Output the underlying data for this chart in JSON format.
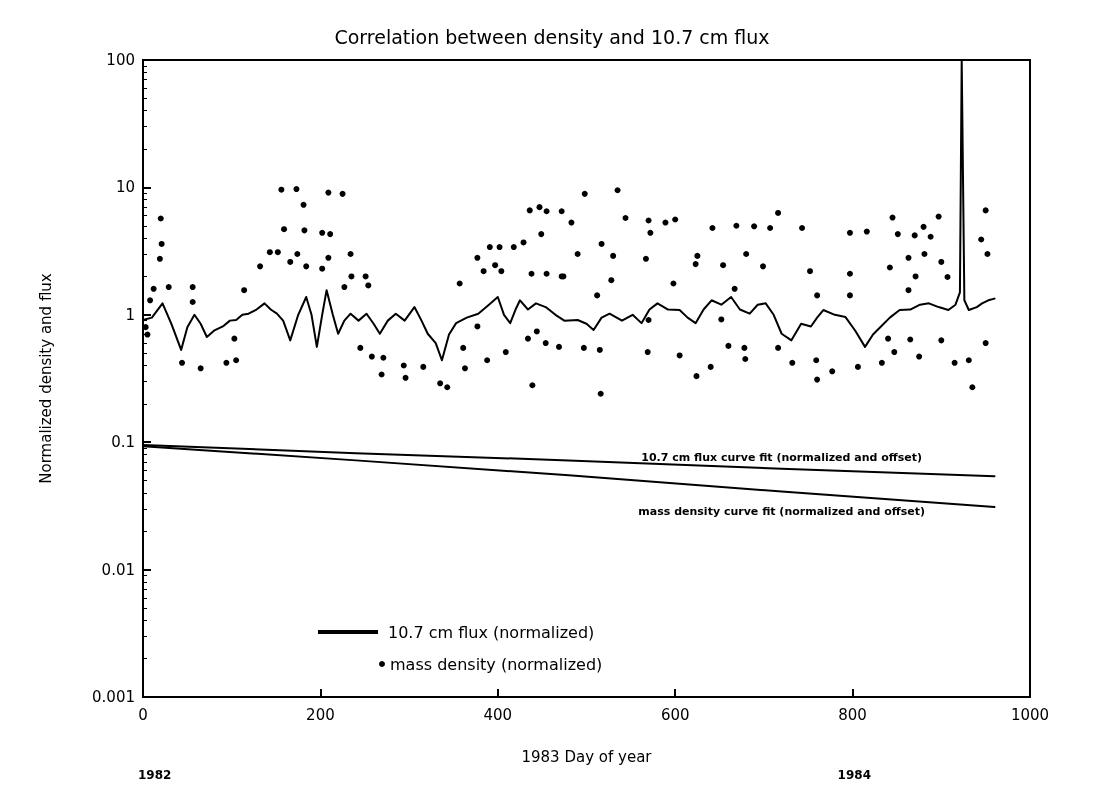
{
  "chart_data": {
    "type": "line",
    "title": "Correlation between density and 10.7 cm flux",
    "xlabel": "1983 Day of year",
    "ylabel": "Normalized density and flux",
    "annotations": [
      "1982",
      "1984"
    ],
    "log": "y",
    "grid": false,
    "legend": "bottom left",
    "xlim": [
      0,
      1000
    ],
    "xticks": [
      0,
      200,
      400,
      600,
      800,
      1000
    ],
    "ylim": [
      0.001,
      100
    ],
    "yticks": [
      0.001,
      0.01,
      0.1,
      1,
      10,
      100
    ],
    "series": [
      {
        "name": "10.7 cm flux (normalized)",
        "color": "#000000",
        "line_style": "solid",
        "marker": "none",
        "x": [
          0,
          10,
          22,
          32,
          43,
          50,
          58,
          65,
          72,
          80,
          90,
          98,
          105,
          112,
          119,
          128,
          137,
          144,
          151,
          158,
          166,
          175,
          184,
          190,
          196,
          202,
          207,
          214,
          220,
          227,
          234,
          243,
          252,
          260,
          267,
          276,
          285,
          295,
          306,
          314,
          321,
          330,
          337,
          345,
          353,
          365,
          378,
          390,
          400,
          407,
          414,
          420,
          425,
          434,
          443,
          454,
          465,
          475,
          490,
          500,
          508,
          517,
          526,
          540,
          552,
          562,
          571,
          580,
          592,
          605,
          614,
          623,
          632,
          641,
          652,
          663,
          673,
          684,
          693,
          702,
          711,
          720,
          731,
          742,
          753,
          760,
          767,
          780,
          792,
          803,
          814,
          823,
          832,
          842,
          853,
          865,
          876,
          886,
          897,
          908,
          916,
          921,
          923,
          926,
          931,
          940,
          946,
          953,
          960
        ],
        "values": [
          0.91,
          0.95,
          1.23,
          0.85,
          0.53,
          0.8,
          1.0,
          0.85,
          0.67,
          0.75,
          0.81,
          0.9,
          0.91,
          1.0,
          1.02,
          1.1,
          1.23,
          1.1,
          1.02,
          0.9,
          0.63,
          1.0,
          1.38,
          1.0,
          0.56,
          1.0,
          1.56,
          1.0,
          0.71,
          0.9,
          1.02,
          0.9,
          1.02,
          0.85,
          0.71,
          0.9,
          1.02,
          0.9,
          1.15,
          0.9,
          0.71,
          0.6,
          0.44,
          0.7,
          0.86,
          0.95,
          1.02,
          1.2,
          1.38,
          1.0,
          0.86,
          1.1,
          1.3,
          1.1,
          1.23,
          1.15,
          1.0,
          0.9,
          0.91,
          0.85,
          0.76,
          0.95,
          1.02,
          0.9,
          1.0,
          0.86,
          1.1,
          1.23,
          1.1,
          1.09,
          0.95,
          0.86,
          1.1,
          1.3,
          1.2,
          1.38,
          1.1,
          1.02,
          1.2,
          1.23,
          1.0,
          0.71,
          0.63,
          0.85,
          0.81,
          0.95,
          1.09,
          1.0,
          0.96,
          0.75,
          0.56,
          0.7,
          0.81,
          0.95,
          1.09,
          1.1,
          1.2,
          1.23,
          1.15,
          1.09,
          1.2,
          1.5,
          100,
          1.3,
          1.09,
          1.15,
          1.23,
          1.3,
          1.34
        ]
      },
      {
        "name": "mass density (normalized)",
        "type": "scatter",
        "color": "#000000",
        "marker": "circle",
        "x": [
          3,
          5,
          8,
          12,
          19,
          20,
          21,
          29,
          44,
          56,
          56,
          65,
          94,
          103,
          105,
          114,
          132,
          143,
          152,
          156,
          159,
          166,
          173,
          174,
          181,
          182,
          184,
          202,
          202,
          209,
          209,
          211,
          225,
          227,
          234,
          235,
          245,
          251,
          254,
          258,
          269,
          271,
          294,
          296,
          316,
          335,
          343,
          357,
          361,
          363,
          377,
          377,
          384,
          388,
          391,
          397,
          402,
          404,
          409,
          418,
          429,
          434,
          436,
          438,
          439,
          444,
          447,
          449,
          454,
          455,
          455,
          469,
          472,
          472,
          474,
          483,
          490,
          497,
          498,
          512,
          515,
          516,
          517,
          528,
          530,
          535,
          544,
          567,
          569,
          570,
          570,
          572,
          589,
          598,
          600,
          605,
          623,
          624,
          625,
          640,
          642,
          652,
          654,
          660,
          667,
          669,
          678,
          679,
          680,
          689,
          699,
          707,
          716,
          716,
          732,
          743,
          752,
          759,
          760,
          760,
          777,
          797,
          797,
          797,
          806,
          816,
          833,
          840,
          842,
          845,
          847,
          851,
          863,
          863,
          865,
          870,
          871,
          875,
          880,
          881,
          888,
          897,
          900,
          900,
          907,
          915,
          931,
          935,
          945,
          950,
          950,
          952
        ],
        "values": [
          0.8,
          0.7,
          1.3,
          1.6,
          2.75,
          5.7,
          3.6,
          1.65,
          0.42,
          1.65,
          1.26,
          0.38,
          0.42,
          0.65,
          0.44,
          1.56,
          2.4,
          3.1,
          3.1,
          9.6,
          4.7,
          2.6,
          9.7,
          3.0,
          7.3,
          4.6,
          2.4,
          4.4,
          2.3,
          9.1,
          2.8,
          4.3,
          8.9,
          1.65,
          3.0,
          2.0,
          0.55,
          2.0,
          1.7,
          0.47,
          0.34,
          0.46,
          0.4,
          0.32,
          0.39,
          0.29,
          0.27,
          1.76,
          0.55,
          0.38,
          2.8,
          0.81,
          2.2,
          0.44,
          3.4,
          2.45,
          3.4,
          2.2,
          0.51,
          3.4,
          3.7,
          0.65,
          6.6,
          2.1,
          0.28,
          0.74,
          7.0,
          4.3,
          0.6,
          6.5,
          2.1,
          0.56,
          6.5,
          2.0,
          2.0,
          5.3,
          3.0,
          0.55,
          8.9,
          1.42,
          0.53,
          0.24,
          3.6,
          1.87,
          2.9,
          9.5,
          5.75,
          2.75,
          0.51,
          0.91,
          5.5,
          4.4,
          5.3,
          1.76,
          5.6,
          0.48,
          2.5,
          0.33,
          2.9,
          0.39,
          4.8,
          0.92,
          2.45,
          0.57,
          1.6,
          5.0,
          0.55,
          0.45,
          3.0,
          4.95,
          2.4,
          4.8,
          6.3,
          0.55,
          0.42,
          4.8,
          2.2,
          0.44,
          0.31,
          1.42,
          0.36,
          4.4,
          2.1,
          1.42,
          0.39,
          4.5,
          0.42,
          0.65,
          2.35,
          5.8,
          0.51,
          4.3,
          2.8,
          1.56,
          0.64,
          4.2,
          2.0,
          0.47,
          4.9,
          3.0,
          4.1,
          5.9,
          2.6,
          0.63,
          1.98,
          0.42,
          0.44,
          0.27,
          3.9,
          6.6,
          0.6,
          3.0
        ]
      },
      {
        "name": "10.7 cm flux curve fit (normalized and offset)",
        "color": "#000000",
        "line_style": "solid",
        "marker": "none",
        "x": [
          0,
          240,
          480,
          720,
          960
        ],
        "values": [
          0.095,
          0.082,
          0.072,
          0.062,
          0.054
        ]
      },
      {
        "name": "mass density curve fit (normalized and offset)",
        "color": "#000000",
        "line_style": "solid",
        "marker": "none",
        "x": [
          0,
          240,
          480,
          720,
          960
        ],
        "values": [
          0.093,
          0.072,
          0.055,
          0.041,
          0.031
        ]
      }
    ]
  }
}
